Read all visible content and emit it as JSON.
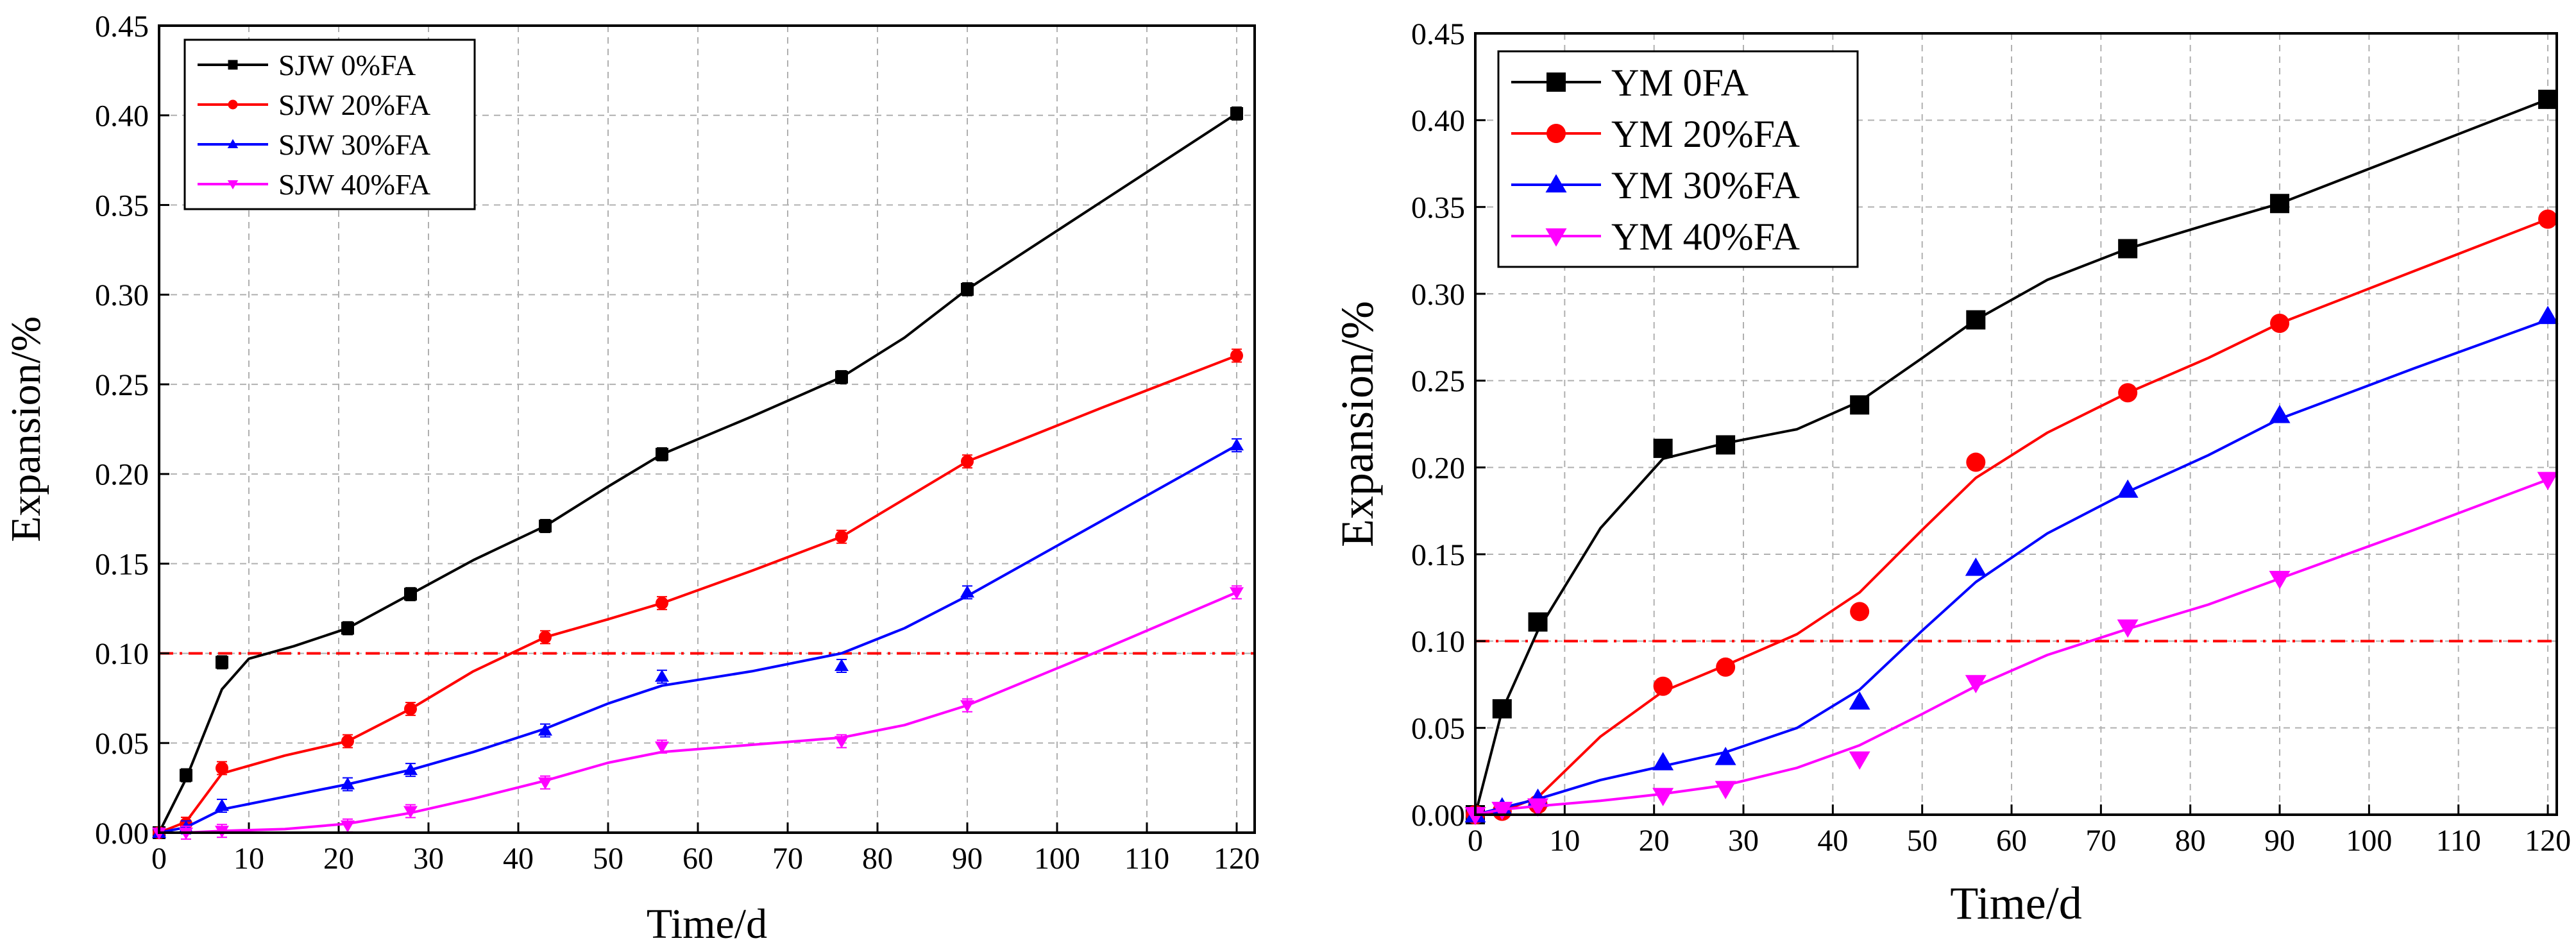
{
  "chart_data": [
    {
      "type": "line",
      "title": "",
      "xlabel": "Time/d",
      "ylabel": "Expansion/%",
      "xlim": [
        0,
        122
      ],
      "ylim": [
        0,
        0.45
      ],
      "xticks": [
        0,
        10,
        20,
        30,
        40,
        50,
        60,
        70,
        80,
        90,
        100,
        110,
        120
      ],
      "yticks": [
        0.0,
        0.05,
        0.1,
        0.15,
        0.2,
        0.25,
        0.3,
        0.35,
        0.4,
        0.45
      ],
      "ytick_decimals": 2,
      "grid": true,
      "error_bars": true,
      "reference_line": 0.1,
      "reference_color": "#ff0000",
      "legend": "top-left",
      "series": [
        {
          "name": "SJW 0%FA",
          "color": "#000000",
          "marker": "square",
          "x": [
            0,
            3,
            7,
            21,
            28,
            43,
            56,
            76,
            90,
            120
          ],
          "y": [
            0.0,
            0.032,
            0.095,
            0.114,
            0.133,
            0.171,
            0.211,
            0.254,
            0.303,
            0.401
          ],
          "curve": [
            [
              0,
              0
            ],
            [
              3,
              0.03
            ],
            [
              7,
              0.08
            ],
            [
              10,
              0.097
            ],
            [
              15,
              0.104
            ],
            [
              21,
              0.114
            ],
            [
              28,
              0.133
            ],
            [
              35,
              0.152
            ],
            [
              43,
              0.171
            ],
            [
              50,
              0.193
            ],
            [
              56,
              0.211
            ],
            [
              66,
              0.232
            ],
            [
              76,
              0.254
            ],
            [
              83,
              0.276
            ],
            [
              90,
              0.303
            ],
            [
              105,
              0.352
            ],
            [
              120,
              0.401
            ]
          ]
        },
        {
          "name": "SJW 20%FA",
          "color": "#ff0000",
          "marker": "circle",
          "x": [
            0,
            3,
            7,
            21,
            28,
            43,
            56,
            76,
            90,
            120
          ],
          "y": [
            0.0,
            0.005,
            0.036,
            0.051,
            0.069,
            0.109,
            0.128,
            0.165,
            0.207,
            0.266
          ],
          "curve": [
            [
              0,
              0
            ],
            [
              3,
              0.006
            ],
            [
              7,
              0.033
            ],
            [
              14,
              0.043
            ],
            [
              21,
              0.051
            ],
            [
              28,
              0.069
            ],
            [
              35,
              0.09
            ],
            [
              43,
              0.109
            ],
            [
              50,
              0.119
            ],
            [
              56,
              0.128
            ],
            [
              66,
              0.146
            ],
            [
              76,
              0.165
            ],
            [
              83,
              0.186
            ],
            [
              90,
              0.207
            ],
            [
              105,
              0.237
            ],
            [
              120,
              0.266
            ]
          ]
        },
        {
          "name": "SJW 30%FA",
          "color": "#0000ff",
          "marker": "triangle-up",
          "x": [
            0,
            3,
            7,
            21,
            28,
            43,
            56,
            76,
            90,
            120
          ],
          "y": [
            0.0,
            0.003,
            0.015,
            0.027,
            0.035,
            0.057,
            0.087,
            0.093,
            0.134,
            0.216
          ],
          "curve": [
            [
              0,
              0
            ],
            [
              3,
              0.003
            ],
            [
              7,
              0.013
            ],
            [
              14,
              0.02
            ],
            [
              21,
              0.027
            ],
            [
              28,
              0.035
            ],
            [
              35,
              0.045
            ],
            [
              43,
              0.058
            ],
            [
              50,
              0.072
            ],
            [
              56,
              0.082
            ],
            [
              66,
              0.09
            ],
            [
              76,
              0.1
            ],
            [
              83,
              0.114
            ],
            [
              90,
              0.132
            ],
            [
              105,
              0.174
            ],
            [
              120,
              0.216
            ]
          ]
        },
        {
          "name": "SJW 40%FA",
          "color": "#ff00ff",
          "marker": "triangle-down",
          "x": [
            0,
            3,
            7,
            21,
            28,
            43,
            56,
            76,
            90,
            120
          ],
          "y": [
            0.0,
            0.0,
            0.001,
            0.004,
            0.012,
            0.028,
            0.048,
            0.051,
            0.071,
            0.134
          ],
          "curve": [
            [
              0,
              0
            ],
            [
              3,
              0
            ],
            [
              7,
              0.001
            ],
            [
              14,
              0.002
            ],
            [
              21,
              0.005
            ],
            [
              28,
              0.011
            ],
            [
              35,
              0.019
            ],
            [
              43,
              0.029
            ],
            [
              50,
              0.039
            ],
            [
              56,
              0.045
            ],
            [
              66,
              0.049
            ],
            [
              76,
              0.053
            ],
            [
              83,
              0.06
            ],
            [
              90,
              0.071
            ],
            [
              105,
              0.102
            ],
            [
              120,
              0.134
            ]
          ]
        }
      ]
    },
    {
      "type": "line",
      "title": "",
      "xlabel": "Time/d",
      "ylabel": "Expansion/%",
      "xlim": [
        0,
        121
      ],
      "ylim": [
        0,
        0.45
      ],
      "xticks": [
        0,
        10,
        20,
        30,
        40,
        50,
        60,
        70,
        80,
        90,
        100,
        110,
        120
      ],
      "yticks": [
        0.0,
        0.05,
        0.1,
        0.15,
        0.2,
        0.25,
        0.3,
        0.35,
        0.4,
        0.45
      ],
      "ytick_decimals": 2,
      "grid": true,
      "error_bars": false,
      "reference_line": 0.1,
      "reference_color": "#ff0000",
      "legend": "top-left",
      "series": [
        {
          "name": "YM 0FA",
          "color": "#000000",
          "marker": "square",
          "x": [
            0,
            3,
            7,
            21,
            28,
            43,
            56,
            73,
            90,
            120
          ],
          "y": [
            0.0,
            0.061,
            0.111,
            0.211,
            0.213,
            0.236,
            0.285,
            0.326,
            0.352,
            0.412
          ],
          "curve": [
            [
              0,
              0
            ],
            [
              3,
              0.06
            ],
            [
              7,
              0.106
            ],
            [
              14,
              0.165
            ],
            [
              21,
              0.205
            ],
            [
              28,
              0.214
            ],
            [
              36,
              0.222
            ],
            [
              43,
              0.238
            ],
            [
              50,
              0.263
            ],
            [
              56,
              0.285
            ],
            [
              64,
              0.308
            ],
            [
              73,
              0.326
            ],
            [
              82,
              0.34
            ],
            [
              90,
              0.352
            ],
            [
              105,
              0.382
            ],
            [
              120,
              0.412
            ]
          ]
        },
        {
          "name": "YM 20%FA",
          "color": "#ff0000",
          "marker": "circle",
          "x": [
            0,
            3,
            7,
            21,
            28,
            43,
            56,
            73,
            90,
            120
          ],
          "y": [
            0.0,
            0.002,
            0.006,
            0.074,
            0.085,
            0.117,
            0.203,
            0.243,
            0.283,
            0.343
          ],
          "curve": [
            [
              0,
              0
            ],
            [
              3,
              0.002
            ],
            [
              7,
              0.01
            ],
            [
              14,
              0.045
            ],
            [
              21,
              0.071
            ],
            [
              28,
              0.086
            ],
            [
              36,
              0.104
            ],
            [
              43,
              0.128
            ],
            [
              50,
              0.164
            ],
            [
              56,
              0.194
            ],
            [
              64,
              0.22
            ],
            [
              73,
              0.243
            ],
            [
              82,
              0.263
            ],
            [
              90,
              0.283
            ],
            [
              105,
              0.313
            ],
            [
              120,
              0.343
            ]
          ]
        },
        {
          "name": "YM 30%FA",
          "color": "#0000ff",
          "marker": "triangle-up",
          "x": [
            0,
            3,
            7,
            21,
            28,
            43,
            56,
            73,
            90,
            120
          ],
          "y": [
            0.0,
            0.004,
            0.009,
            0.03,
            0.033,
            0.065,
            0.142,
            0.187,
            0.23,
            0.287
          ],
          "curve": [
            [
              0,
              0
            ],
            [
              3,
              0.004
            ],
            [
              7,
              0.009
            ],
            [
              14,
              0.02
            ],
            [
              21,
              0.028
            ],
            [
              28,
              0.036
            ],
            [
              36,
              0.05
            ],
            [
              43,
              0.072
            ],
            [
              50,
              0.106
            ],
            [
              56,
              0.134
            ],
            [
              64,
              0.162
            ],
            [
              73,
              0.186
            ],
            [
              82,
              0.207
            ],
            [
              90,
              0.228
            ],
            [
              105,
              0.257
            ],
            [
              120,
              0.285
            ]
          ]
        },
        {
          "name": "YM 40%FA",
          "color": "#ff00ff",
          "marker": "triangle-down",
          "x": [
            0,
            3,
            7,
            21,
            28,
            43,
            56,
            73,
            90,
            120
          ],
          "y": [
            0.0,
            0.003,
            0.005,
            0.011,
            0.015,
            0.032,
            0.076,
            0.108,
            0.136,
            0.193
          ],
          "curve": [
            [
              0,
              0
            ],
            [
              3,
              0.003
            ],
            [
              7,
              0.005
            ],
            [
              14,
              0.008
            ],
            [
              21,
              0.012
            ],
            [
              28,
              0.017
            ],
            [
              36,
              0.027
            ],
            [
              43,
              0.04
            ],
            [
              50,
              0.058
            ],
            [
              56,
              0.074
            ],
            [
              64,
              0.092
            ],
            [
              73,
              0.107
            ],
            [
              82,
              0.121
            ],
            [
              90,
              0.136
            ],
            [
              105,
              0.164
            ],
            [
              120,
              0.193
            ]
          ]
        }
      ]
    }
  ]
}
